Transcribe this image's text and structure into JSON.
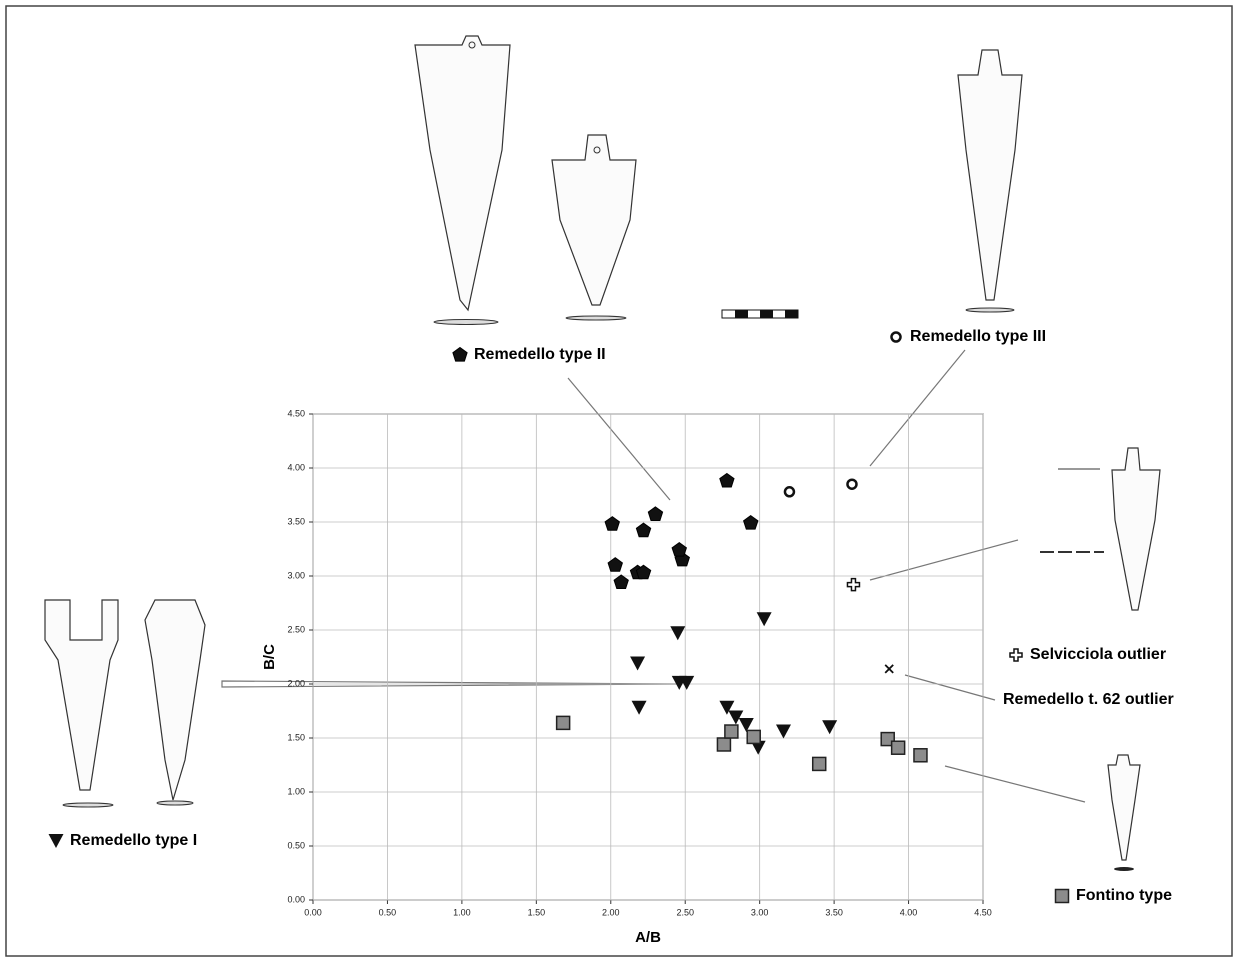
{
  "chart_data": {
    "type": "scatter",
    "x_label": "A/B",
    "y_label": "B/C",
    "xlim": [
      0,
      4.5
    ],
    "ylim": [
      0,
      4.5
    ],
    "xticks": [
      {
        "value": 0,
        "label": "0.00"
      },
      {
        "value": 0.5,
        "label": "0.50"
      },
      {
        "value": 1,
        "label": "1.00"
      },
      {
        "value": 1.5,
        "label": "1.50"
      },
      {
        "value": 2,
        "label": "2.00"
      },
      {
        "value": 2.5,
        "label": "2.50"
      },
      {
        "value": 3,
        "label": "3.00"
      },
      {
        "value": 3.5,
        "label": "3.50"
      },
      {
        "value": 4,
        "label": "4.00"
      },
      {
        "value": 4.5,
        "label": "4.50"
      }
    ],
    "yticks": [
      {
        "value": 0,
        "label": "0.00"
      },
      {
        "value": 0.5,
        "label": "0.50"
      },
      {
        "value": 1,
        "label": "1.00"
      },
      {
        "value": 1.5,
        "label": "1.50"
      },
      {
        "value": 2,
        "label": "2.00"
      },
      {
        "value": 2.5,
        "label": "2.50"
      },
      {
        "value": 3,
        "label": "3.00"
      },
      {
        "value": 3.5,
        "label": "3.50"
      },
      {
        "value": 4,
        "label": "4.00"
      },
      {
        "value": 4.5,
        "label": "4.50"
      }
    ],
    "grid": true,
    "series": [
      {
        "name": "Remedello type II",
        "marker": "pentagon",
        "color": "#111111",
        "x": [
          2.01,
          2.22,
          2.3,
          2.78,
          2.94,
          2.03,
          2.18,
          2.22,
          2.07,
          2.48,
          2.46
        ],
        "values": [
          3.48,
          3.42,
          3.57,
          3.88,
          3.49,
          3.1,
          3.03,
          3.03,
          2.94,
          3.15,
          3.24
        ]
      },
      {
        "name": "Remedello type III",
        "marker": "circle",
        "color": "#111111",
        "x": [
          3.2,
          3.62
        ],
        "values": [
          3.78,
          3.85
        ]
      },
      {
        "name": "Selvicciola outlier",
        "marker": "plus",
        "color": "#111111",
        "x": [
          3.63
        ],
        "values": [
          2.92
        ]
      },
      {
        "name": "Remedello t. 62 outlier",
        "marker": "cross",
        "color": "#111111",
        "x": [
          3.87
        ],
        "values": [
          2.14
        ]
      },
      {
        "name": "Remedello type I",
        "marker": "triangle",
        "color": "#111111",
        "x": [
          3.03,
          2.45,
          2.18,
          2.46,
          2.51,
          2.19,
          2.78,
          2.84,
          2.91,
          2.99,
          3.16,
          3.47
        ],
        "values": [
          2.6,
          2.47,
          2.19,
          2.01,
          2.01,
          1.78,
          1.78,
          1.69,
          1.62,
          1.41,
          1.56,
          1.6
        ]
      },
      {
        "name": "Fontino type",
        "marker": "square",
        "color": "#8c8c8c",
        "x": [
          1.68,
          2.76,
          2.81,
          2.96,
          3.4,
          3.86,
          3.93,
          4.08
        ],
        "values": [
          1.64,
          1.44,
          1.56,
          1.51,
          1.26,
          1.49,
          1.41,
          1.34
        ]
      }
    ]
  }
}
